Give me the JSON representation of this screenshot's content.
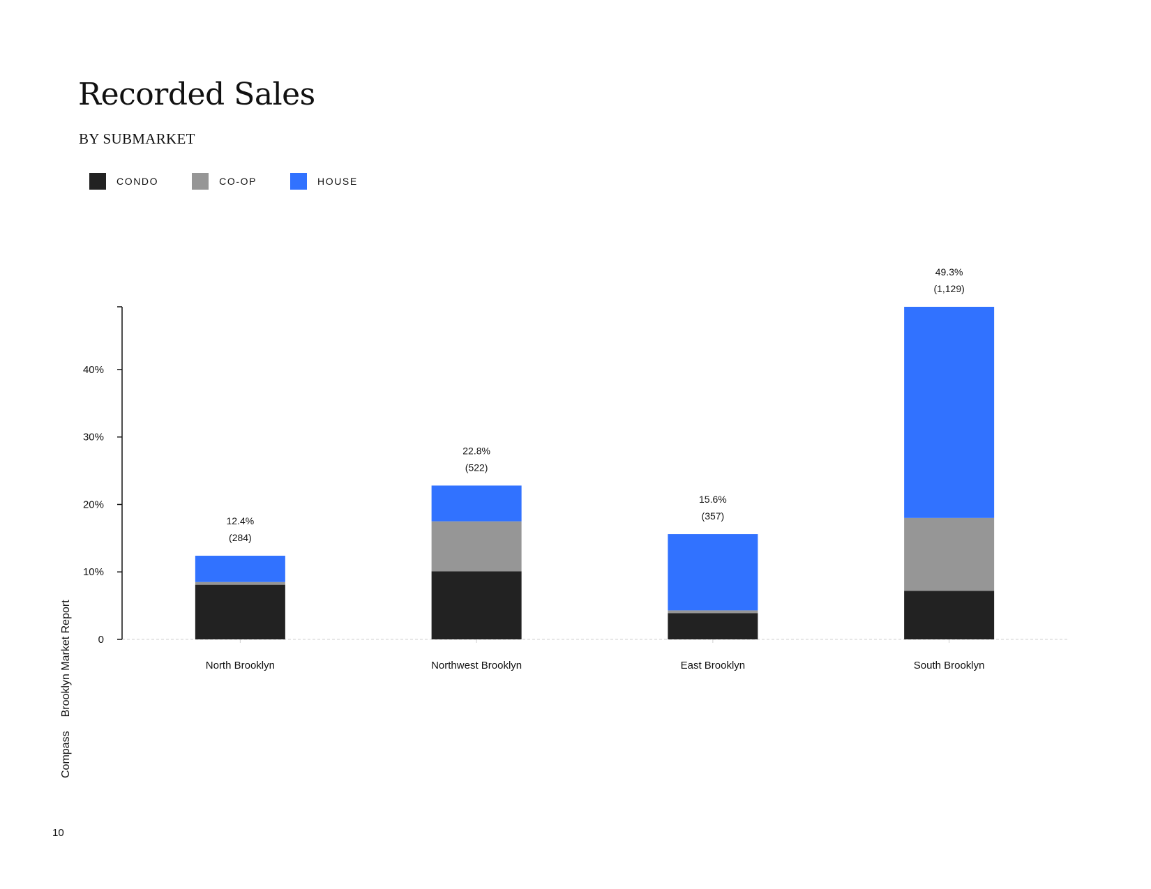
{
  "header": {
    "title": "Recorded Sales",
    "subtitle": "BY SUBMARKET"
  },
  "legend": [
    {
      "label": "CONDO",
      "color": "#222222"
    },
    {
      "label": "CO-OP",
      "color": "#969696"
    },
    {
      "label": "HOUSE",
      "color": "#3172FF"
    }
  ],
  "chart_data": {
    "type": "bar",
    "stacked": true,
    "categories": [
      "North Brooklyn",
      "Northwest Brooklyn",
      "East Brooklyn",
      "South Brooklyn"
    ],
    "series": [
      {
        "name": "CONDO",
        "color": "#222222",
        "values": [
          8.1,
          10.1,
          3.9,
          7.2
        ]
      },
      {
        "name": "CO-OP",
        "color": "#969696",
        "values": [
          0.4,
          7.4,
          0.4,
          10.8
        ]
      },
      {
        "name": "HOUSE",
        "color": "#3172FF",
        "values": [
          3.9,
          5.3,
          11.3,
          31.3
        ]
      }
    ],
    "totals": [
      12.4,
      22.8,
      15.6,
      49.3
    ],
    "total_labels": [
      "12.4%",
      "22.8%",
      "15.6%",
      "49.3%"
    ],
    "count_labels": [
      "(284)",
      "(522)",
      "(357)",
      "(1,129)"
    ],
    "yticks": [
      0,
      10,
      20,
      30,
      40
    ],
    "ytick_labels": [
      "0",
      "10%",
      "20%",
      "30%",
      "40%"
    ],
    "ylim": [
      0,
      49.3
    ],
    "xlabel": "",
    "ylabel": "",
    "legend_position": "top-left",
    "grid": false
  },
  "footer": {
    "brand": "Compass",
    "report": "Brooklyn Market Report",
    "page_number": "10"
  }
}
